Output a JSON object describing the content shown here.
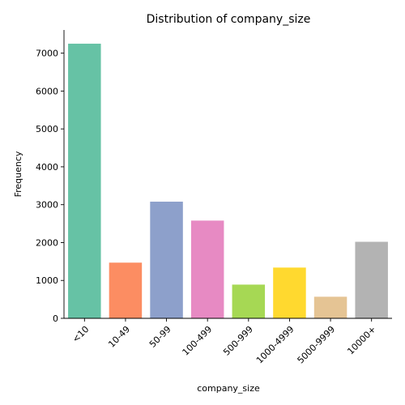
{
  "chart_data": {
    "type": "bar",
    "title": "Distribution of company_size",
    "xlabel": "company_size",
    "ylabel": "Frequency",
    "categories": [
      "<10",
      "10-49",
      "50-99",
      "100-499",
      "500-999",
      "1000-4999",
      "5000-9999",
      "10000+"
    ],
    "values": [
      7250,
      1470,
      3080,
      2580,
      890,
      1340,
      570,
      2020
    ],
    "colors": [
      "#66c2a5",
      "#fc8d62",
      "#8da0cb",
      "#e78ac3",
      "#a6d854",
      "#ffd92f",
      "#e5c494",
      "#b3b3b3"
    ],
    "yticks": [
      0,
      1000,
      2000,
      3000,
      4000,
      5000,
      6000,
      7000
    ],
    "ylim": [
      0,
      7612
    ],
    "grid": false,
    "legend": "none"
  }
}
